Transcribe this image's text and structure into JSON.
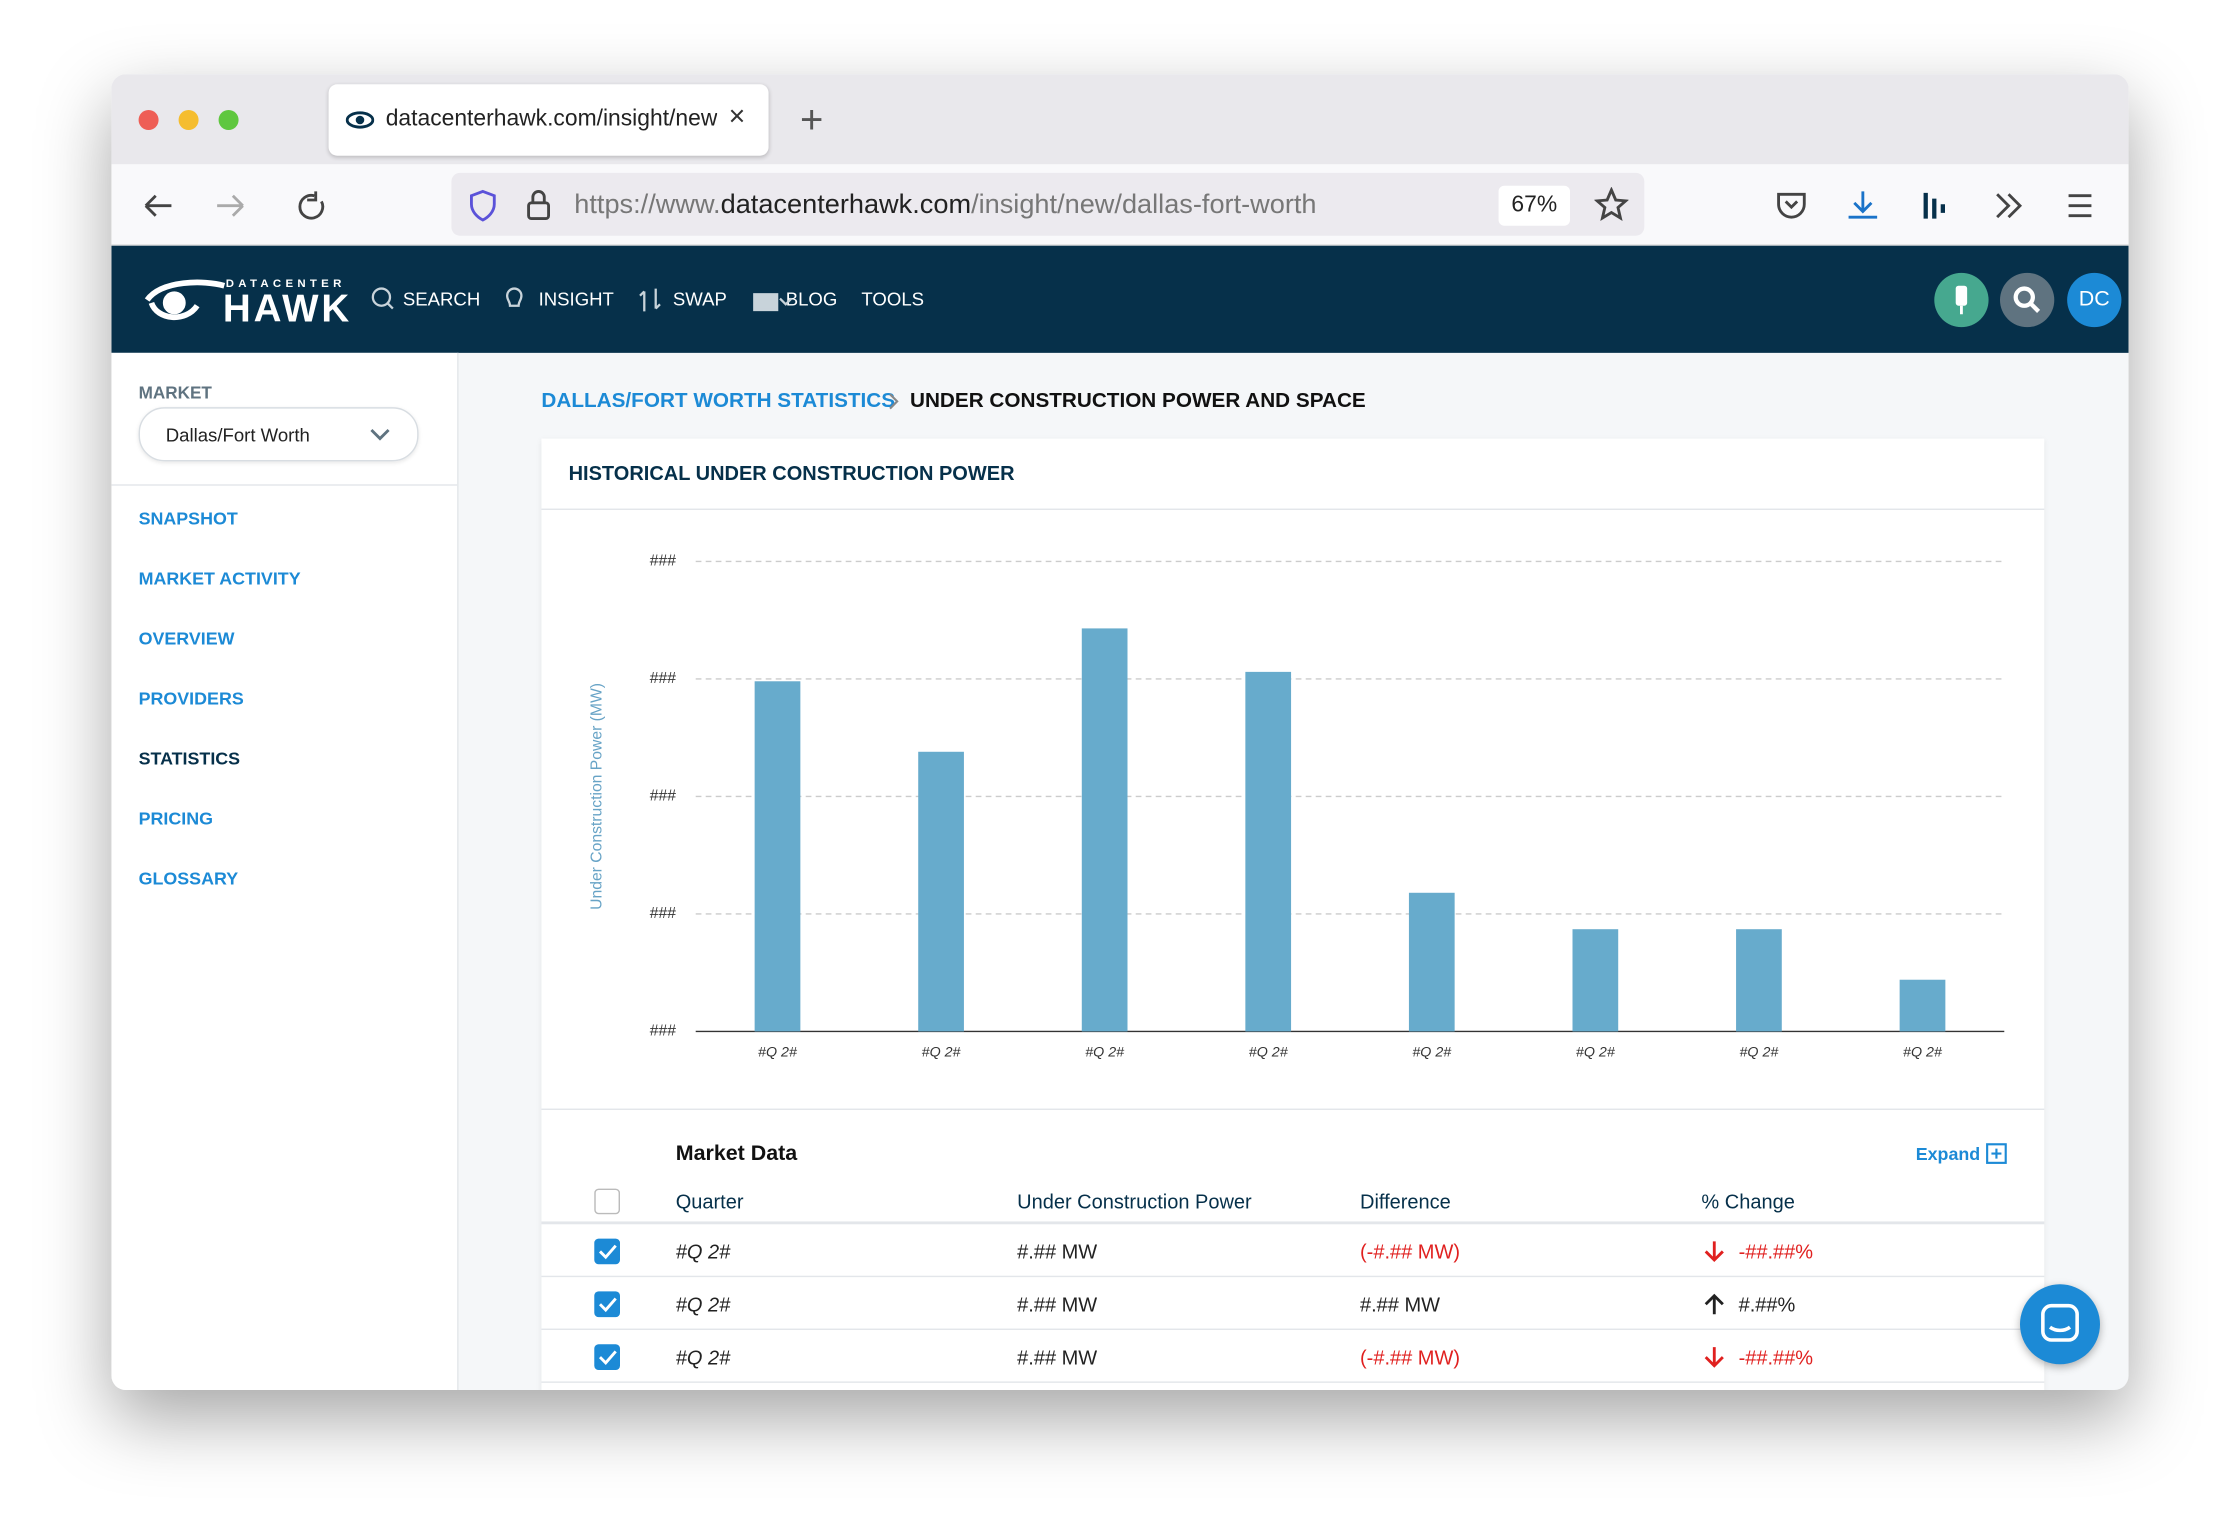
{
  "browser": {
    "tab_title": "datacenterhawk.com/insight/new/dallas-fort-worth",
    "url_scheme": "https://www.",
    "url_domain": "datacenterhawk.com",
    "url_path": "/insight/new/dallas-fort-worth",
    "zoom": "67%"
  },
  "nav": {
    "logo_top": "DATACENTER",
    "logo": "HAWK",
    "items": [
      "SEARCH",
      "INSIGHT",
      "SWAP",
      "BLOG",
      "TOOLS"
    ],
    "avatar": "DC"
  },
  "sidebar": {
    "market_label": "MARKET",
    "market_value": "Dallas/Fort Worth",
    "links": [
      "SNAPSHOT",
      "MARKET ACTIVITY",
      "OVERVIEW",
      "PROVIDERS",
      "STATISTICS",
      "PRICING",
      "GLOSSARY"
    ]
  },
  "breadcrumb": [
    "DALLAS/FORT WORTH STATISTICS",
    "UNDER CONSTRUCTION POWER AND SPACE"
  ],
  "chart_data": {
    "type": "bar",
    "title": "HISTORICAL UNDER CONSTRUCTION POWER",
    "y_label": "Under Construction Power (MW)",
    "categories": [
      "#Q 2#",
      "#Q 2#",
      "#Q 2#",
      "#Q 2#",
      "#Q 2#",
      "#Q 2#",
      "#Q 2#",
      "#Q 2#"
    ],
    "values": [
      2.98,
      2.38,
      3.43,
      3.06,
      1.18,
      0.87,
      0.87,
      0.44
    ],
    "color": "#67abcc",
    "ylim": [
      0,
      4
    ],
    "yticks": [
      {
        "value": 0,
        "label": "###"
      },
      {
        "value": 1,
        "label": "###"
      },
      {
        "value": 2,
        "label": "###"
      },
      {
        "value": 3,
        "label": "###"
      },
      {
        "value": 4,
        "label": "###"
      }
    ],
    "grid": true
  },
  "table": {
    "title": "Market Data",
    "expand": "Expand",
    "columns": [
      "Quarter",
      "Under Construction Power",
      "Difference",
      "% Change"
    ],
    "rows": [
      [
        "#Q 2#",
        "#.## MW",
        "(-#.## MW)",
        "-##.##%"
      ],
      [
        "#Q 2#",
        "#.## MW",
        "#.## MW",
        "#.##%"
      ],
      [
        "#Q 2#",
        "#.## MW",
        "(-#.## MW)",
        "-##.##%"
      ]
    ]
  }
}
